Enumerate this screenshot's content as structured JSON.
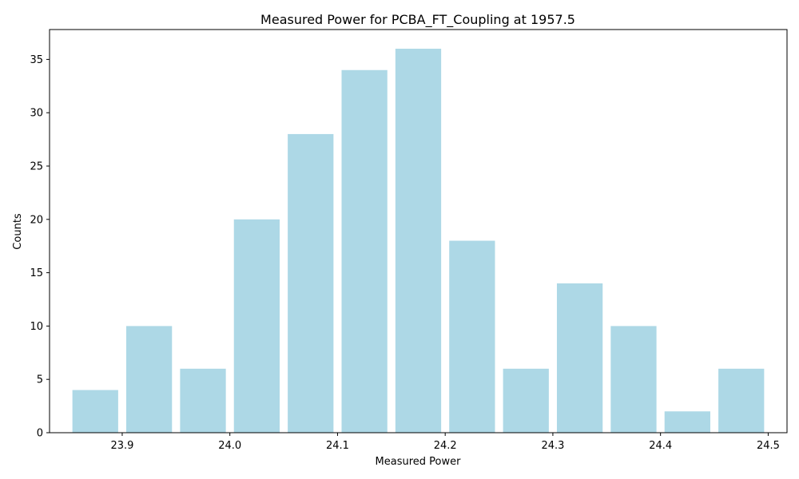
{
  "chart_data": {
    "type": "bar",
    "title": "Measured Power for PCBA_FT_Coupling at 1957.5",
    "xlabel": "Measured Power",
    "ylabel": "Counts",
    "bins": [
      {
        "x": 23.875,
        "count": 4
      },
      {
        "x": 23.925,
        "count": 10
      },
      {
        "x": 23.975,
        "count": 6
      },
      {
        "x": 24.025,
        "count": 20
      },
      {
        "x": 24.075,
        "count": 28
      },
      {
        "x": 24.125,
        "count": 34
      },
      {
        "x": 24.175,
        "count": 36
      },
      {
        "x": 24.225,
        "count": 18
      },
      {
        "x": 24.275,
        "count": 6
      },
      {
        "x": 24.325,
        "count": 14
      },
      {
        "x": 24.375,
        "count": 10
      },
      {
        "x": 24.425,
        "count": 2
      },
      {
        "x": 24.475,
        "count": 6
      }
    ],
    "bin_width": 0.05,
    "xlim": [
      23.8325,
      24.5175
    ],
    "ylim": [
      0,
      37.8
    ],
    "xticks": [
      "23.9",
      "24.0",
      "24.1",
      "24.2",
      "24.3",
      "24.4",
      "24.5"
    ],
    "yticks": [
      "0",
      "5",
      "10",
      "15",
      "20",
      "25",
      "30",
      "35"
    ],
    "bar_color": "#ADD8E6",
    "grid": false
  }
}
